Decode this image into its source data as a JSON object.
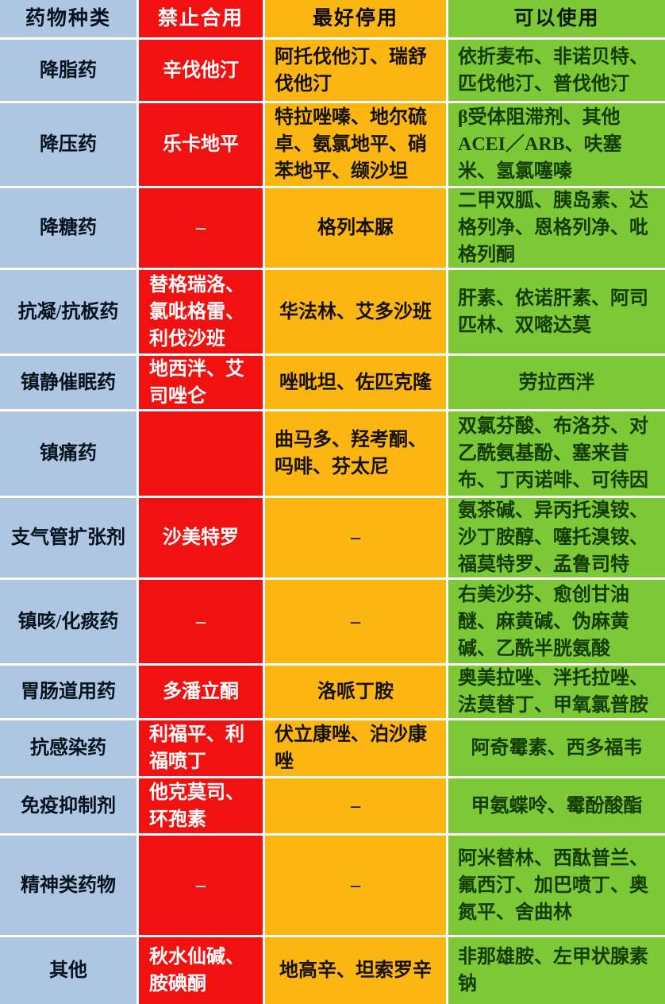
{
  "chart_data": {
    "type": "table",
    "empty_cell_marker": "–",
    "columns": [
      {
        "id": "category",
        "header": "药物种类",
        "bg": "#afc6e3",
        "header_text_color": "#06121d",
        "body_text_color": "#06121d"
      },
      {
        "id": "prohibited",
        "header": "禁止合用",
        "bg": "#f21111",
        "header_text_color": "#ffffff",
        "body_text_color": "#ffffff"
      },
      {
        "id": "best_stop",
        "header": "最好停用",
        "bg": "#fcb612",
        "header_text_color": "#0d0a04",
        "body_text_color": "#151107"
      },
      {
        "id": "can_use",
        "header": "可以使用",
        "bg": "#7cc837",
        "header_text_color": "#0a1a02",
        "body_text_color": "#143c00"
      }
    ],
    "rows": [
      {
        "category": "降脂药",
        "prohibited": "辛伐他汀",
        "best_stop": "阿托伐他汀、瑞舒伐他汀",
        "can_use": "依折麦布、非诺贝特、匹伐他汀、普伐他汀"
      },
      {
        "category": "降压药",
        "prohibited": "乐卡地平",
        "best_stop": "特拉唑嗪、地尔硫卓、氨氯地平、硝苯地平、缬沙坦",
        "can_use": "β受体阻滞剂、其他ACEI／ARB、呋塞米、氢氯噻嗪"
      },
      {
        "category": "降糖药",
        "prohibited": "–",
        "best_stop": "格列本脲",
        "can_use": "二甲双胍、胰岛素、达格列净、恩格列净、吡格列酮"
      },
      {
        "category": "抗凝/抗板药",
        "prohibited": "替格瑞洛、氯吡格雷、利伐沙班",
        "best_stop": "华法林、艾多沙班",
        "can_use": "肝素、依诺肝素、阿司匹林、双嘧达莫"
      },
      {
        "category": "镇静催眠药",
        "prohibited": "地西泮、艾司唑仑",
        "best_stop": "唑吡坦、佐匹克隆",
        "can_use": "劳拉西泮"
      },
      {
        "category": "镇痛药",
        "prohibited": "",
        "best_stop": "曲马多、羟考酮、吗啡、芬太尼",
        "can_use": "双氯芬酸、布洛芬、对乙酰氨基酚、塞来昔布、丁丙诺啡、可待因"
      },
      {
        "category": "支气管扩张剂",
        "prohibited": "沙美特罗",
        "best_stop": "–",
        "can_use": "氨茶碱、异丙托溴铵、沙丁胺醇、噻托溴铵、福莫特罗、孟鲁司特"
      },
      {
        "category": "镇咳/化痰药",
        "prohibited": "–",
        "best_stop": "–",
        "can_use": "右美沙芬、愈创甘油醚、麻黄碱、伪麻黄碱、乙酰半胱氨酸"
      },
      {
        "category": "胃肠道用药",
        "prohibited": "多潘立酮",
        "best_stop": "洛哌丁胺",
        "can_use": "奥美拉唑、泮托拉唑、法莫替丁、甲氧氯普胺"
      },
      {
        "category": "抗感染药",
        "prohibited": "利福平、利福喷丁",
        "best_stop": "伏立康唑、泊沙康唑",
        "can_use": "阿奇霉素、西多福韦"
      },
      {
        "category": "免疫抑制剂",
        "prohibited": "他克莫司、环孢素",
        "best_stop": "–",
        "can_use": "甲氨蝶呤、霉酚酸酯"
      },
      {
        "category": "精神类药物",
        "prohibited": "–",
        "best_stop": "–",
        "can_use": "阿米替林、西酞普兰、氟西汀、加巴喷丁、奥氮平、舍曲林"
      },
      {
        "category": "其他",
        "prohibited": "秋水仙碱、胺碘酮",
        "best_stop": "地高辛、坦索罗辛",
        "can_use": "非那雄胺、左甲状腺素钠"
      }
    ]
  }
}
